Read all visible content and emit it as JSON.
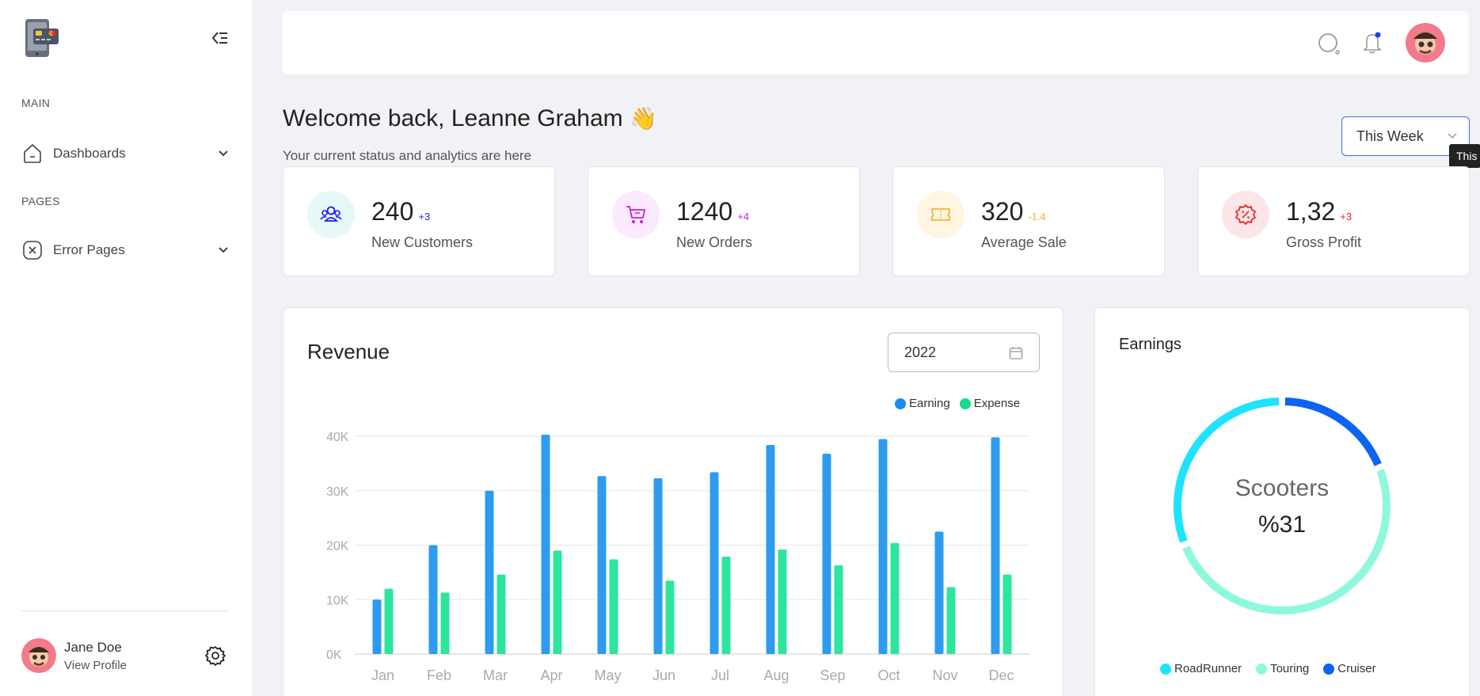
{
  "sidebar": {
    "section_main": "MAIN",
    "section_pages": "PAGES",
    "items": [
      {
        "label": "Dashboards"
      },
      {
        "label": "Error Pages"
      }
    ],
    "profile": {
      "name": "Jane Doe",
      "link": "View Profile"
    }
  },
  "header": {},
  "welcome": {
    "title": "Welcome back, Leanne Graham",
    "emoji": "👋",
    "subtitle": "Your current status and analytics are here",
    "period": "This Week",
    "tooltip": "This"
  },
  "stats": [
    {
      "value": "240",
      "delta": "+3",
      "label": "New Customers",
      "color": "#1a1aff",
      "bg": "#e8f8f8"
    },
    {
      "value": "1240",
      "delta": "+4",
      "label": "New Orders",
      "color": "#c51fd8",
      "bg": "#fbeafd"
    },
    {
      "value": "320",
      "delta": "-1.4",
      "label": "Average Sale",
      "color": "#f0b43c",
      "bg": "#fff6e2"
    },
    {
      "value": "1,32",
      "delta": "+3",
      "label": "Gross Profit",
      "color": "#e3242b",
      "bg": "#fde6e7"
    }
  ],
  "revenue": {
    "title": "Revenue",
    "year": "2022"
  },
  "earnings": {
    "title": "Earnings",
    "center_label": "Scooters",
    "center_value": "%31"
  },
  "chart_data": [
    {
      "type": "bar",
      "title": "Revenue",
      "categories": [
        "Jan",
        "Feb",
        "Mar",
        "Apr",
        "May",
        "Jun",
        "Jul",
        "Aug",
        "Sep",
        "Oct",
        "Nov",
        "Dec"
      ],
      "series": [
        {
          "name": "Earning",
          "color": "#2d9cf0",
          "values": [
            10000,
            20000,
            30000,
            40300,
            32700,
            32300,
            33400,
            38400,
            36800,
            39500,
            22500,
            39800
          ]
        },
        {
          "name": "Expense",
          "color": "#2ee59d",
          "values": [
            12000,
            11300,
            14600,
            19000,
            17400,
            13500,
            17900,
            19200,
            16300,
            20400,
            12300,
            14600
          ]
        }
      ],
      "ylim": [
        0,
        40000
      ],
      "yticks": [
        "0K",
        "10K",
        "20K",
        "30K",
        "40K"
      ],
      "ytick_values": [
        0,
        10000,
        20000,
        30000,
        40000
      ],
      "legend": "top-right"
    },
    {
      "type": "pie",
      "title": "Earnings",
      "categories": [
        "RoadRunner",
        "Touring",
        "Cruiser"
      ],
      "colors": [
        "#1ee3ff",
        "#8ef8dd",
        "#0d63f2"
      ],
      "values": [
        31,
        50,
        19
      ],
      "legend": "bottom"
    }
  ]
}
